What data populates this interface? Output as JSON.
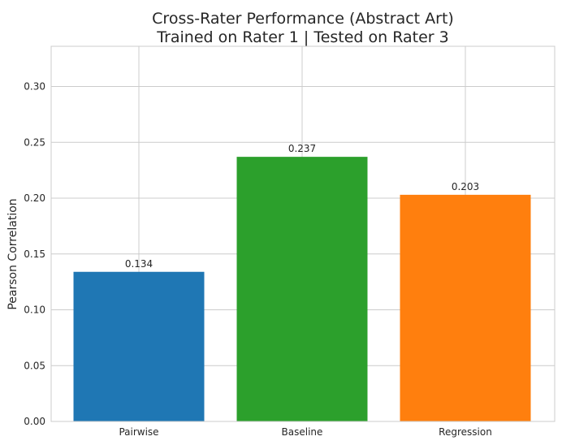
{
  "chart_data": {
    "type": "bar",
    "title_lines": [
      "Cross-Rater Performance (Abstract Art)",
      "Trained on Rater 1 | Tested on Rater 3"
    ],
    "xlabel": "",
    "ylabel": "Pearson Correlation",
    "categories": [
      "Pairwise",
      "Baseline",
      "Regression"
    ],
    "values": [
      0.134,
      0.237,
      0.203
    ],
    "value_labels": [
      "0.134",
      "0.237",
      "0.203"
    ],
    "colors": [
      "#1f77b4",
      "#2ca02c",
      "#ff7f0e"
    ],
    "ylim": [
      0,
      0.336
    ],
    "yticks": [
      0.0,
      0.05,
      0.1,
      0.15,
      0.2,
      0.25,
      0.3
    ],
    "ytick_labels": [
      "0.00",
      "0.05",
      "0.10",
      "0.15",
      "0.20",
      "0.25",
      "0.30"
    ],
    "grid": true,
    "grid_color": "#cccccc",
    "spine_color": "#cccccc",
    "legend": "none"
  }
}
